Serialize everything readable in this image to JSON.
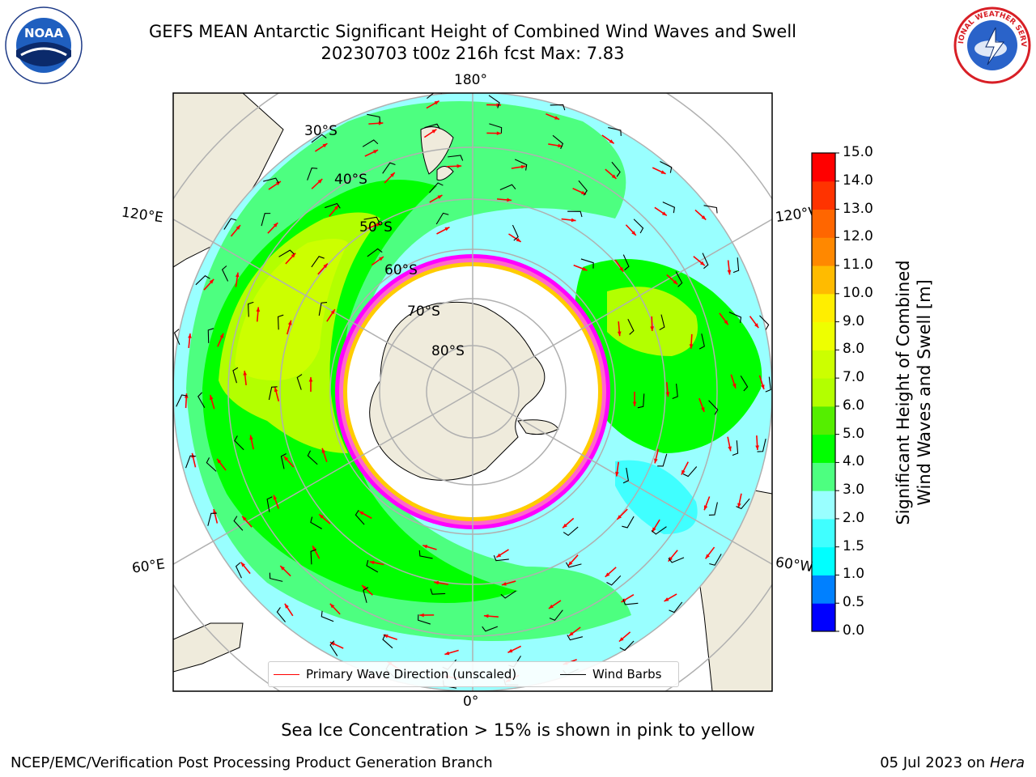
{
  "header": {
    "title_line1": "GEFS MEAN Antarctic Significant Height of Combined Wind Waves and Swell",
    "title_line2": "20230703 t00z 216h fcst   Max: 7.83"
  },
  "logos": {
    "left": "noaa-logo",
    "right": "national-weather-service-logo",
    "left_text": "NOAA",
    "right_text": "NATIONAL WEATHER SERVICE"
  },
  "map": {
    "projection": "south-polar-stereographic",
    "longitude_labels": {
      "top": "180°",
      "bottom": "0°",
      "upper_left": "120°E",
      "lower_left": "60°E",
      "upper_right": "120°W",
      "lower_right": "60°W"
    },
    "latitude_labels": [
      "30°S",
      "40°S",
      "50°S",
      "60°S",
      "70°S",
      "80°S"
    ],
    "land_color": "#efebdc",
    "ocean_background": "#ffffff",
    "ice_colors": [
      "#ff00ff",
      "#ff66cc",
      "#ffcc00"
    ],
    "grid_color": "#b0b0b0"
  },
  "legend": {
    "primary_wave": "Primary Wave Direction (unscaled)",
    "wind_barbs": "Wind Barbs",
    "primary_wave_color": "#ff0000",
    "wind_barbs_color": "#000000"
  },
  "colorbar": {
    "title_line1": "Significant Height of Combined",
    "title_line2": "Wind Waves and Swell [m]",
    "ticks": [
      "0.0",
      "0.5",
      "1.0",
      "1.5",
      "2.0",
      "3.0",
      "4.0",
      "5.0",
      "6.0",
      "7.0",
      "8.0",
      "9.0",
      "10.0",
      "11.0",
      "12.0",
      "13.0",
      "14.0",
      "15.0"
    ],
    "colors": [
      "#0000ff",
      "#0080ff",
      "#00ffff",
      "#40ffff",
      "#99ffff",
      "#4dff80",
      "#00ff00",
      "#55ee00",
      "#b3ff00",
      "#ccff00",
      "#eeff00",
      "#ffee00",
      "#ffbb00",
      "#ff8800",
      "#ff6600",
      "#ff3300",
      "#ff0000"
    ]
  },
  "footer": {
    "ice_note": "Sea Ice Concentration > 15% is shown in pink to yellow",
    "left": "NCEP/EMC/Verification Post Processing Product Generation Branch",
    "right_date": "05 Jul 2023 on ",
    "right_machine": "Hera"
  }
}
